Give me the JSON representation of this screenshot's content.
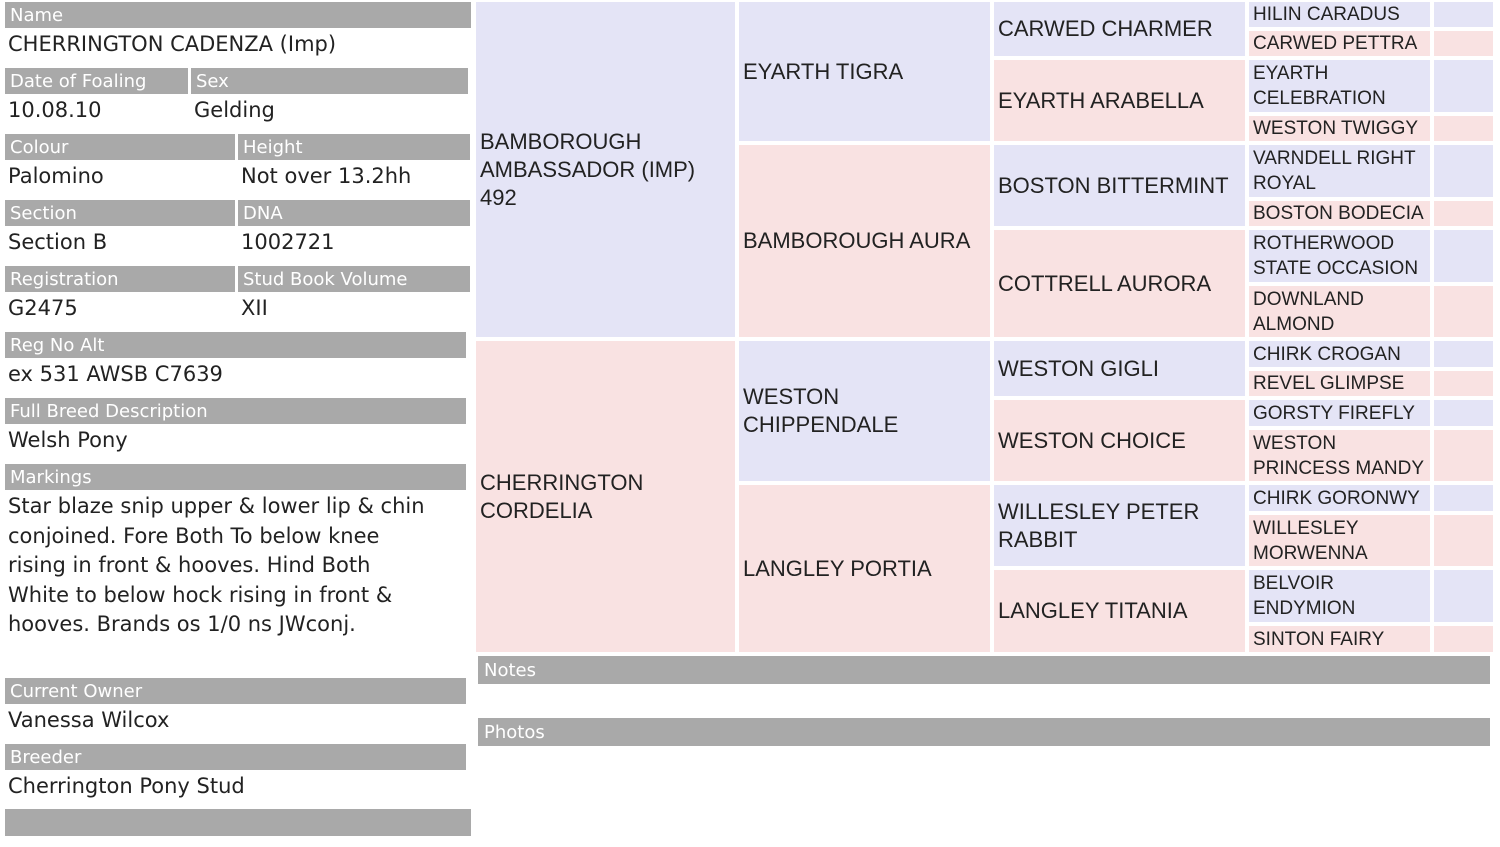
{
  "details": {
    "name": {
      "label": "Name",
      "value": "CHERRINGTON CADENZA (Imp)"
    },
    "date_of_foaling": {
      "label": "Date of Foaling",
      "value": "10.08.10"
    },
    "sex": {
      "label": "Sex",
      "value": "Gelding"
    },
    "colour": {
      "label": "Colour",
      "value": "Palomino"
    },
    "height": {
      "label": "Height",
      "value": "Not over 13.2hh"
    },
    "section": {
      "label": "Section",
      "value": "Section B"
    },
    "dna": {
      "label": "DNA",
      "value": "1002721"
    },
    "registration": {
      "label": "Registration",
      "value": "G2475"
    },
    "stud_book_volume": {
      "label": "Stud Book Volume",
      "value": "XII"
    },
    "reg_no_alt": {
      "label": "Reg No Alt",
      "value": "ex 531 AWSB C7639"
    },
    "full_breed_description": {
      "label": "Full Breed Description",
      "value": "Welsh Pony"
    },
    "markings": {
      "label": "Markings",
      "value": "Star blaze snip upper & lower lip & chin conjoined. Fore Both To below knee rising in front & hooves. Hind Both White to below hock rising in front & hooves. Brands os 1/0 ns JWconj."
    },
    "current_owner": {
      "label": "Current Owner",
      "value": "Vanessa Wilcox"
    },
    "breeder": {
      "label": "Breeder",
      "value": "Cherrington Pony Stud"
    }
  },
  "pedigree": {
    "generation_1": [
      "BAMBOROUGH AMBASSADOR (IMP) 492",
      "CHERRINGTON CORDELIA"
    ],
    "generation_2": [
      "EYARTH TIGRA",
      "BAMBOROUGH AURA",
      "WESTON CHIPPENDALE",
      "LANGLEY PORTIA"
    ],
    "generation_3": [
      "CARWED CHARMER",
      "EYARTH ARABELLA",
      "BOSTON BITTERMINT",
      "COTTRELL AURORA",
      "WESTON GIGLI",
      "WESTON CHOICE",
      "WILLESLEY PETER RABBIT",
      "LANGLEY TITANIA"
    ],
    "generation_4": [
      "HILIN CARADUS",
      "CARWED PETTRA",
      "EYARTH CELEBRATION",
      "WESTON TWIGGY",
      "VARNDELL RIGHT ROYAL",
      "BOSTON BODECIA",
      "ROTHERWOOD STATE OCCASION",
      "DOWNLAND ALMOND",
      "CHIRK CROGAN",
      "REVEL GLIMPSE",
      "GORSTY FIREFLY",
      "WESTON PRINCESS MANDY",
      "CHIRK GORONWY",
      "WILLESLEY MORWENNA",
      "BELVOIR ENDYMION",
      "SINTON FAIRY"
    ]
  },
  "sections": {
    "notes": "Notes",
    "photos": "Photos"
  }
}
